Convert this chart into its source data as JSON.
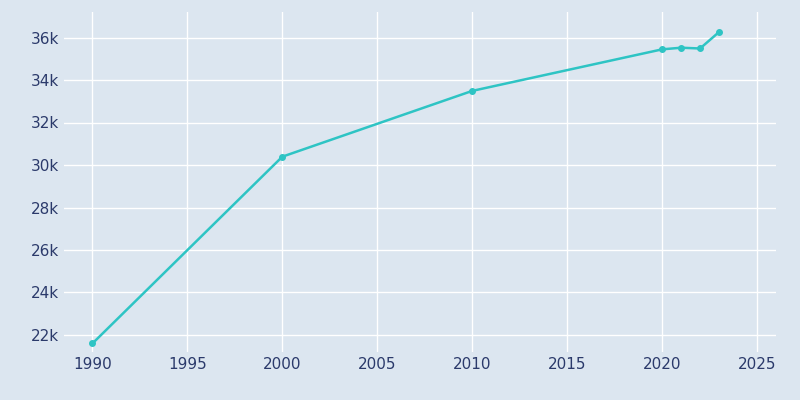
{
  "years": [
    1990,
    2000,
    2010,
    2020,
    2021,
    2022,
    2023
  ],
  "population": [
    21603,
    30392,
    33487,
    35442,
    35519,
    35483,
    36258
  ],
  "line_color": "#2EC4C4",
  "plot_bg_color": "#DCE6F0",
  "fig_bg_color": "#DCE6F0",
  "outer_bg_color": "#D5E0EC",
  "marker": "o",
  "marker_size": 4,
  "line_width": 1.8,
  "xlim": [
    1988.5,
    2026
  ],
  "ylim": [
    21200,
    37200
  ],
  "xticks": [
    1990,
    1995,
    2000,
    2005,
    2010,
    2015,
    2020,
    2025
  ],
  "yticks": [
    22000,
    24000,
    26000,
    28000,
    30000,
    32000,
    34000,
    36000
  ],
  "ytick_labels": [
    "22k",
    "24k",
    "26k",
    "28k",
    "30k",
    "32k",
    "34k",
    "36k"
  ],
  "grid_color": "#FFFFFF",
  "tick_label_color": "#2B3A6B",
  "tick_fontsize": 11
}
